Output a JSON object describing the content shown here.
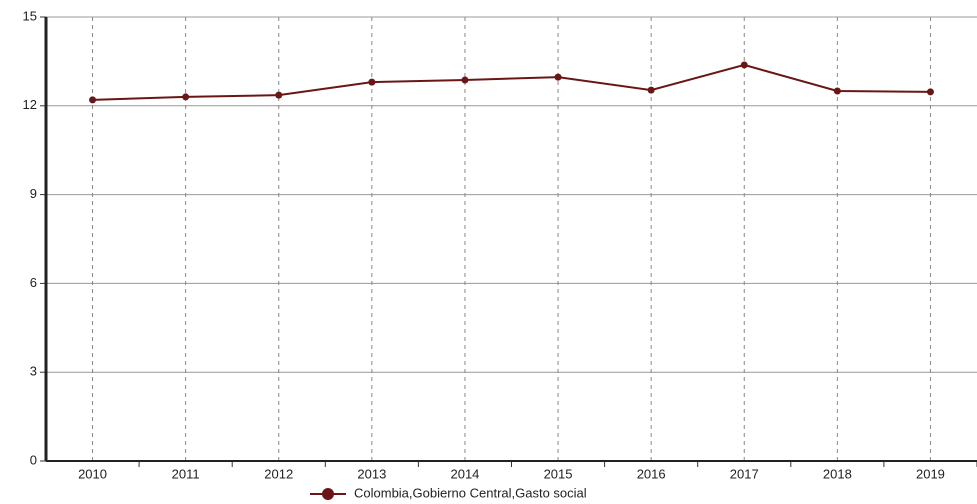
{
  "chart_data": {
    "type": "line",
    "categories": [
      "2010",
      "2011",
      "2012",
      "2013",
      "2014",
      "2015",
      "2016",
      "2017",
      "2018",
      "2019"
    ],
    "series": [
      {
        "name": "Colombia,Gobierno Central,Gasto social",
        "color": "#6b1616",
        "values": [
          12.2,
          12.3,
          12.36,
          12.8,
          12.87,
          12.97,
          12.53,
          13.38,
          12.5,
          12.47
        ]
      }
    ],
    "ylim": [
      0,
      15
    ],
    "yticks": [
      0,
      3,
      6,
      9,
      12,
      15
    ],
    "grid": true,
    "legend": "bottom"
  }
}
